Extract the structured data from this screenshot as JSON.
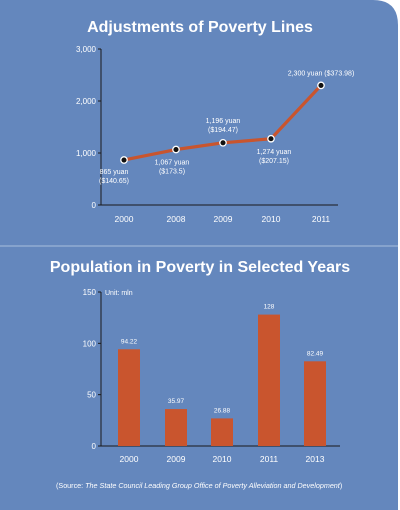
{
  "colors": {
    "panel": "#6487bd",
    "divider": "#a8bfdd",
    "series": "#c9552e",
    "axis": "#1a1a1a",
    "text": "#ffffff"
  },
  "source": {
    "prefix": "(Source: ",
    "italic": "The State Council Leading Group Office of Poverty Alleviation and Development",
    "suffix": ")"
  },
  "chart_data": [
    {
      "type": "line",
      "title": "Adjustments of Poverty Lines",
      "xlabel": "",
      "ylabel": "",
      "x": [
        "2000",
        "2008",
        "2009",
        "2010",
        "2011"
      ],
      "series": [
        {
          "values": [
            865,
            1067,
            1196,
            1274,
            2300
          ],
          "labels": [
            [
              "865 yuan",
              "($140.65)"
            ],
            [
              "1,067 yuan",
              "($173.5)"
            ],
            [
              "1,196 yuan",
              "($194.47)"
            ],
            [
              "1,274 yuan",
              "($207.15)"
            ],
            [
              "2,300 yuan ($373.98)"
            ]
          ]
        }
      ],
      "yticks": [
        0,
        1000,
        2000,
        3000
      ],
      "ytick_labels": [
        "0",
        "1,000",
        "2,000",
        "3,000"
      ],
      "ylim": [
        0,
        3000
      ],
      "grid": false,
      "markers": true
    },
    {
      "type": "bar",
      "title": "Population in Poverty in Selected Years",
      "unit_label": "Unit: mln",
      "xlabel": "",
      "ylabel": "",
      "categories": [
        "2000",
        "2009",
        "2010",
        "2011",
        "2013"
      ],
      "values": [
        94.22,
        35.97,
        26.88,
        128,
        82.49
      ],
      "value_labels": [
        "94.22",
        "35.97",
        "26.88",
        "128",
        "82.49"
      ],
      "yticks": [
        0,
        50,
        100,
        150
      ],
      "ytick_labels": [
        "0",
        "50",
        "100",
        "150"
      ],
      "ylim": [
        0,
        150
      ],
      "grid": false
    }
  ]
}
